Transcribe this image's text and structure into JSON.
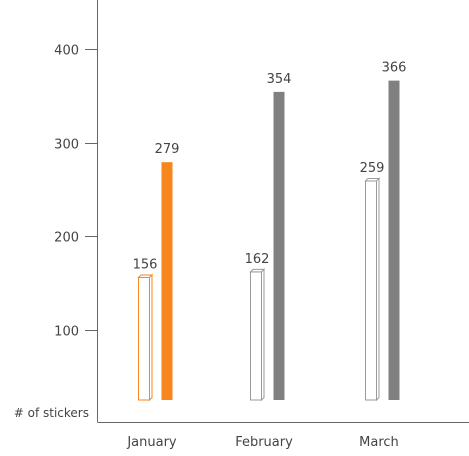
{
  "chart_data": {
    "type": "bar",
    "title": "",
    "xlabel": "",
    "ylabel": "# of stickers",
    "categories": [
      "January",
      "February",
      "March"
    ],
    "series": [
      {
        "values": [
          156,
          162,
          259
        ],
        "style": "outline-3d"
      },
      {
        "values": [
          279,
          354,
          366
        ],
        "style": "solid"
      }
    ],
    "yticks": [
      100,
      200,
      300,
      400
    ],
    "ylim": [
      0,
      420
    ],
    "grid": false,
    "colors": {
      "highlight": "#f7861e",
      "solid": "#808080",
      "outline": "#9a9a9a",
      "axis": "#666666",
      "text": "#444444"
    },
    "highlight_category": "January"
  }
}
